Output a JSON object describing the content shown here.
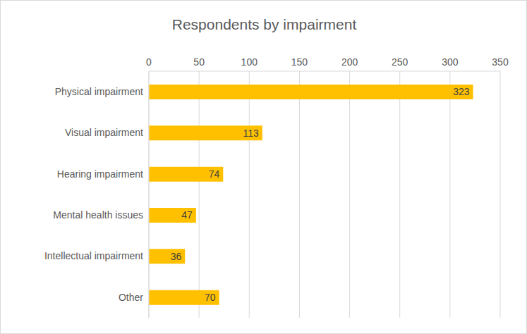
{
  "chart_data": {
    "type": "bar",
    "title": "Respondents by impairment",
    "orientation": "horizontal",
    "categories": [
      "Physical impairment",
      "Visual impairment",
      "Hearing impairment",
      "Mental health issues",
      "Intellectual impairment",
      "Other"
    ],
    "values": [
      323,
      113,
      74,
      47,
      36,
      70
    ],
    "color": "#ffc000",
    "xlim": [
      0,
      350
    ],
    "xticks": [
      0,
      50,
      100,
      150,
      200,
      250,
      300,
      350
    ],
    "grid": true,
    "data_labels": true
  }
}
